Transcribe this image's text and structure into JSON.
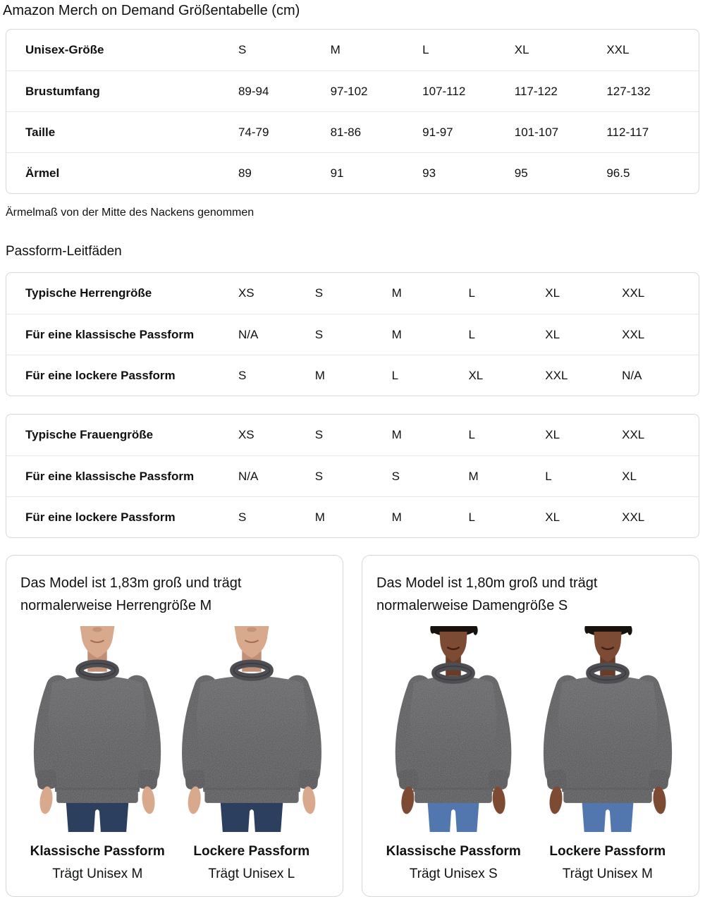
{
  "page": {
    "title": "Amazon Merch on Demand Größentabelle (cm)",
    "note": "Ärmelmaß von der Mitte des Nackens genommen",
    "fit_guides_heading": "Passform-Leitfäden"
  },
  "size_table": {
    "rows": [
      {
        "label": "Unisex-Größe",
        "values": [
          "S",
          "M",
          "L",
          "XL",
          "XXL"
        ]
      },
      {
        "label": "Brustumfang",
        "values": [
          "89-94",
          "97-102",
          "107-112",
          "117-122",
          "127-132"
        ]
      },
      {
        "label": "Taille",
        "values": [
          "74-79",
          "81-86",
          "91-97",
          "101-107",
          "112-117"
        ]
      },
      {
        "label": "Ärmel",
        "values": [
          "89",
          "91",
          "93",
          "95",
          "96.5"
        ]
      }
    ]
  },
  "mens_fit_table": {
    "rows": [
      {
        "label": "Typische Herrengröße",
        "values": [
          "XS",
          "S",
          "M",
          "L",
          "XL",
          "XXL"
        ]
      },
      {
        "label": "Für eine klassische Passform",
        "values": [
          "N/A",
          "S",
          "M",
          "L",
          "XL",
          "XXL"
        ]
      },
      {
        "label": "Für eine lockere Passform",
        "values": [
          "S",
          "M",
          "L",
          "XL",
          "XXL",
          "N/A"
        ]
      }
    ]
  },
  "womens_fit_table": {
    "rows": [
      {
        "label": "Typische Frauengröße",
        "values": [
          "XS",
          "S",
          "M",
          "L",
          "XL",
          "XXL"
        ]
      },
      {
        "label": "Für eine klassische Passform",
        "values": [
          "N/A",
          "S",
          "S",
          "M",
          "L",
          "XL"
        ]
      },
      {
        "label": "Für eine lockere Passform",
        "values": [
          "S",
          "M",
          "M",
          "L",
          "XL",
          "XXL"
        ]
      }
    ]
  },
  "model_cards": [
    {
      "description": "Das Model ist 1,83m groß und trägt normalerweise Herrengröße M",
      "figures": [
        {
          "fit_label": "Klassische Passform",
          "size_label": "Trägt Unisex M"
        },
        {
          "fit_label": "Lockere Passform",
          "size_label": "Trägt Unisex L"
        }
      ]
    },
    {
      "description": "Das Model ist 1,80m groß und trägt normalerweise Damengröße S",
      "figures": [
        {
          "fit_label": "Klassische Passform",
          "size_label": "Trägt Unisex S"
        },
        {
          "fit_label": "Lockere Passform",
          "size_label": "Trägt Unisex M"
        }
      ]
    }
  ],
  "colors": {
    "text": "#0f1111",
    "table_border": "#d5d9d9",
    "row_divider": "#e8e8e8",
    "sweatshirt_gray": "#4e4e52",
    "jeans_men": "#2d3f5e",
    "jeans_women": "#5277ae",
    "skin_male": "#d9a98e",
    "skin_female": "#7d4b34"
  }
}
